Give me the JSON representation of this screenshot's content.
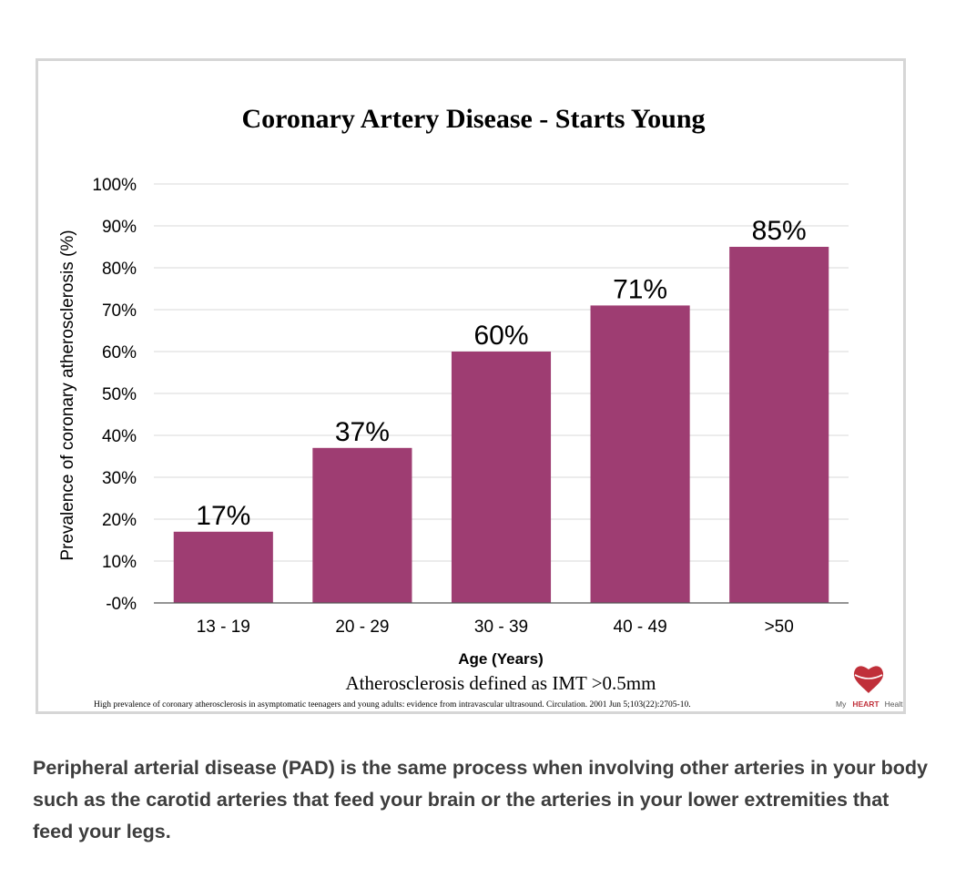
{
  "chart_data": {
    "type": "bar",
    "title": "Coronary Artery Disease - Starts Young",
    "categories": [
      "13 - 19",
      "20 - 29",
      "30 - 39",
      "40 - 49",
      ">50"
    ],
    "values": [
      17,
      37,
      60,
      71,
      85
    ],
    "value_labels": [
      "17%",
      "37%",
      "60%",
      "71%",
      "85%"
    ],
    "xlabel": "Age (Years)",
    "ylabel": "Prevalence of coronary atherosclerosis (%)",
    "ylim": [
      0,
      100
    ],
    "y_ticks": [
      0,
      10,
      20,
      30,
      40,
      50,
      60,
      70,
      80,
      90,
      100
    ],
    "y_tick_labels": [
      "-0%",
      "10%",
      "20%",
      "30%",
      "40%",
      "50%",
      "60%",
      "70%",
      "80%",
      "90%",
      "100%"
    ],
    "grid": true,
    "bar_color": "#9e3d72",
    "note": "Atherosclerosis defined as IMT >0.5mm",
    "citation": "High prevalence of coronary atherosclerosis in asymptomatic teenagers and young adults: evidence from intravascular ultrasound. Circulation. 2001 Jun 5;103(22):2705-10."
  },
  "logo": {
    "icon": "heart-icon",
    "prefix": "My",
    "brand": "HEART",
    "suffix": "Health",
    "color": "#c0303a"
  },
  "caption": {
    "text": "Peripheral arterial disease (PAD) is the same process when involving other arteries in your body such as the carotid arteries that feed your brain or the arteries in your lower extremities that feed your legs."
  }
}
